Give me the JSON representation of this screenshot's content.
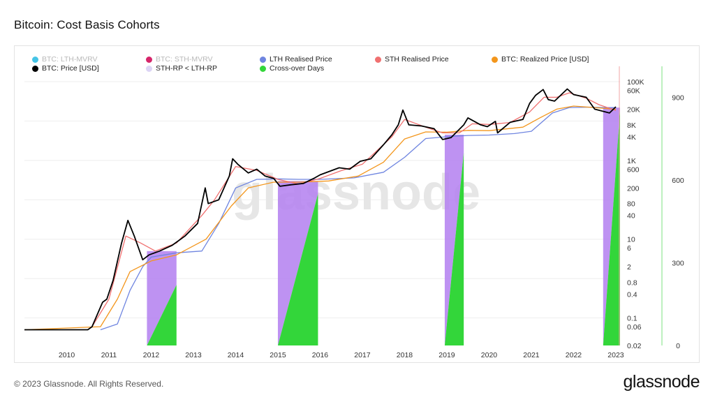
{
  "title": "Bitcoin: Cost Basis Cohorts",
  "footer": "© 2023 Glassnode. All Rights Reserved.",
  "brand": "glassnode",
  "watermark": "glassnode",
  "colors": {
    "lth_mvrv": "#45c4e6",
    "sth_mvrv": "#d6256a",
    "lth_rp": "#6f85e0",
    "sth_rp": "#f07070",
    "realized_price": "#f3961c",
    "price": "#000000",
    "sth_lt_lth_fill": "#b37ff0",
    "crossover_days": "#33d63a"
  },
  "legend": [
    {
      "label": "BTC: LTH-MVRV",
      "color": "#45c4e6",
      "faded": true
    },
    {
      "label": "BTC: STH-MVRV",
      "color": "#d6256a",
      "faded": true
    },
    {
      "label": "LTH Realised Price",
      "color": "#6f85e0",
      "faded": false
    },
    {
      "label": "STH Realised Price",
      "color": "#f07070",
      "faded": false
    },
    {
      "label": "BTC: Realized Price [USD]",
      "color": "#f3961c",
      "faded": false
    },
    {
      "label": "BTC: Price [USD]",
      "color": "#000000",
      "faded": false
    },
    {
      "label": "STH-RP < LTH-RP",
      "color": "#dcd4f5",
      "faded": false
    },
    {
      "label": "Cross-over Days",
      "color": "#33d63a",
      "faded": false
    }
  ],
  "chart_data": {
    "type": "line",
    "title": "Bitcoin: Cost Basis Cohorts",
    "x_ticks": [
      "2010",
      "2011",
      "2012",
      "2013",
      "2014",
      "2015",
      "2016",
      "2017",
      "2018",
      "2019",
      "2020",
      "2021",
      "2022",
      "2023"
    ],
    "x_range": [
      "2009-01-03",
      "2023-02-01"
    ],
    "y_left": {
      "scale": "log",
      "range": [
        0.02,
        200000
      ],
      "ticks": [
        "100K",
        "60K",
        "20K",
        "8K",
        "4K",
        "1K",
        "600",
        "200",
        "80",
        "40",
        "10",
        "6",
        "2",
        "0.8",
        "0.4",
        "0.1",
        "0.06",
        "0.02"
      ],
      "tick_values": [
        100000,
        60000,
        20000,
        8000,
        4000,
        1000,
        600,
        200,
        80,
        40,
        10,
        6,
        2,
        0.8,
        0.4,
        0.1,
        0.06,
        0.02
      ]
    },
    "y_right": {
      "scale": "linear",
      "range": [
        0,
        1000
      ],
      "ticks": [
        "900",
        "600",
        "300",
        "0"
      ],
      "tick_values": [
        900,
        600,
        300,
        0
      ]
    },
    "grid": true,
    "series": [
      {
        "name": "BTC: Price [USD]",
        "axis": "left",
        "points": [
          [
            "2009.0",
            0.05
          ],
          [
            "2010.5",
            0.05
          ],
          [
            "2010.6",
            0.06
          ],
          [
            "2010.85",
            0.25
          ],
          [
            "2010.95",
            0.3
          ],
          [
            "2011.1",
            0.9
          ],
          [
            "2011.3",
            8
          ],
          [
            "2011.45",
            30
          ],
          [
            "2011.6",
            12
          ],
          [
            "2011.8",
            3
          ],
          [
            "2011.95",
            4
          ],
          [
            "2012.2",
            5
          ],
          [
            "2012.5",
            7
          ],
          [
            "2012.8",
            12
          ],
          [
            "2013.1",
            25
          ],
          [
            "2013.28",
            200
          ],
          [
            "2013.35",
            80
          ],
          [
            "2013.6",
            100
          ],
          [
            "2013.85",
            400
          ],
          [
            "2013.93",
            1100
          ],
          [
            "2014.05",
            800
          ],
          [
            "2014.3",
            480
          ],
          [
            "2014.5",
            600
          ],
          [
            "2014.7",
            400
          ],
          [
            "2014.9",
            350
          ],
          [
            "2015.05",
            220
          ],
          [
            "2015.3",
            240
          ],
          [
            "2015.6",
            260
          ],
          [
            "2015.85",
            350
          ],
          [
            "2016.0",
            430
          ],
          [
            "2016.45",
            650
          ],
          [
            "2016.7",
            600
          ],
          [
            "2016.95",
            950
          ],
          [
            "2017.2",
            1100
          ],
          [
            "2017.5",
            2500
          ],
          [
            "2017.7",
            4500
          ],
          [
            "2017.85",
            8000
          ],
          [
            "2017.96",
            19000
          ],
          [
            "2018.1",
            8000
          ],
          [
            "2018.4",
            7500
          ],
          [
            "2018.7",
            6400
          ],
          [
            "2018.9",
            3400
          ],
          [
            "2019.1",
            3800
          ],
          [
            "2019.4",
            8000
          ],
          [
            "2019.5",
            12000
          ],
          [
            "2019.8",
            8000
          ],
          [
            "2019.96",
            7200
          ],
          [
            "2020.15",
            9800
          ],
          [
            "2020.2",
            5000
          ],
          [
            "2020.5",
            9300
          ],
          [
            "2020.8",
            11000
          ],
          [
            "2020.96",
            28000
          ],
          [
            "2021.1",
            45000
          ],
          [
            "2021.28",
            63000
          ],
          [
            "2021.4",
            35000
          ],
          [
            "2021.55",
            32000
          ],
          [
            "2021.85",
            65000
          ],
          [
            "2022.0",
            47000
          ],
          [
            "2022.3",
            40000
          ],
          [
            "2022.5",
            20000
          ],
          [
            "2022.85",
            16000
          ],
          [
            "2023.0",
            23000
          ]
        ]
      },
      {
        "name": "STH Realised Price",
        "axis": "left",
        "points": [
          [
            "2010.6",
            0.06
          ],
          [
            "2011.0",
            0.3
          ],
          [
            "2011.4",
            12
          ],
          [
            "2011.75",
            8
          ],
          [
            "2012.1",
            5
          ],
          [
            "2012.6",
            8
          ],
          [
            "2013.2",
            40
          ],
          [
            "2013.5",
            100
          ],
          [
            "2014.0",
            700
          ],
          [
            "2014.5",
            560
          ],
          [
            "2015.0",
            330
          ],
          [
            "2015.5",
            250
          ],
          [
            "2016.0",
            350
          ],
          [
            "2016.5",
            550
          ],
          [
            "2017.0",
            800
          ],
          [
            "2017.7",
            4000
          ],
          [
            "2018.0",
            11000
          ],
          [
            "2018.5",
            7000
          ],
          [
            "2018.9",
            5000
          ],
          [
            "2019.3",
            5000
          ],
          [
            "2019.6",
            8500
          ],
          [
            "2020.0",
            8200
          ],
          [
            "2020.5",
            9200
          ],
          [
            "2020.96",
            17000
          ],
          [
            "2021.3",
            40000
          ],
          [
            "2021.6",
            40000
          ],
          [
            "2021.9",
            52000
          ],
          [
            "2022.3",
            38000
          ],
          [
            "2022.6",
            26000
          ],
          [
            "2023.0",
            18500
          ]
        ]
      },
      {
        "name": "LTH Realised Price",
        "axis": "left",
        "points": [
          [
            "2010.8",
            0.05
          ],
          [
            "2011.2",
            0.07
          ],
          [
            "2011.5",
            0.5
          ],
          [
            "2011.8",
            2
          ],
          [
            "2012.0",
            3.5
          ],
          [
            "2012.6",
            4.5
          ],
          [
            "2013.2",
            5
          ],
          [
            "2013.6",
            25
          ],
          [
            "2014.0",
            200
          ],
          [
            "2014.5",
            330
          ],
          [
            "2015.0",
            340
          ],
          [
            "2015.5",
            330
          ],
          [
            "2016.0",
            330
          ],
          [
            "2016.8",
            360
          ],
          [
            "2017.5",
            500
          ],
          [
            "2018.0",
            1200
          ],
          [
            "2018.5",
            3600
          ],
          [
            "2019.0",
            4000
          ],
          [
            "2019.5",
            4300
          ],
          [
            "2020.0",
            4400
          ],
          [
            "2020.6",
            4800
          ],
          [
            "2021.0",
            5500
          ],
          [
            "2021.5",
            16000
          ],
          [
            "2021.9",
            22000
          ],
          [
            "2022.4",
            22500
          ],
          [
            "2022.7",
            22000
          ],
          [
            "2023.0",
            22000
          ]
        ]
      },
      {
        "name": "BTC: Realized Price [USD]",
        "axis": "left",
        "points": [
          [
            "2009.0",
            0.05
          ],
          [
            "2010.8",
            0.06
          ],
          [
            "2011.2",
            0.3
          ],
          [
            "2011.5",
            1.5
          ],
          [
            "2012.0",
            2.8
          ],
          [
            "2012.6",
            4
          ],
          [
            "2013.3",
            10
          ],
          [
            "2013.9",
            70
          ],
          [
            "2014.3",
            200
          ],
          [
            "2014.9",
            280
          ],
          [
            "2015.5",
            280
          ],
          [
            "2016.2",
            300
          ],
          [
            "2016.9",
            400
          ],
          [
            "2017.5",
            900
          ],
          [
            "2018.0",
            3500
          ],
          [
            "2018.5",
            5300
          ],
          [
            "2019.0",
            5200
          ],
          [
            "2019.5",
            5800
          ],
          [
            "2020.0",
            5700
          ],
          [
            "2020.8",
            7000
          ],
          [
            "2021.2",
            12000
          ],
          [
            "2021.6",
            20000
          ],
          [
            "2022.0",
            24000
          ],
          [
            "2022.5",
            22000
          ],
          [
            "2023.0",
            19800
          ]
        ]
      }
    ],
    "regions": [
      {
        "name": "STH-RP < LTH-RP",
        "start": "2011.9",
        "end": "2012.6"
      },
      {
        "name": "STH-RP < LTH-RP",
        "start": "2015.0",
        "end": "2015.95"
      },
      {
        "name": "STH-RP < LTH-RP",
        "start": "2018.95",
        "end": "2019.4"
      },
      {
        "name": "STH-RP < LTH-RP",
        "start": "2022.7",
        "end": "2023.1"
      }
    ],
    "crossover_days": [
      {
        "start": "2011.9",
        "end": "2012.6",
        "max": 220
      },
      {
        "start": "2015.0",
        "end": "2015.95",
        "max": 550
      },
      {
        "start": "2018.95",
        "end": "2019.4",
        "max": 700
      },
      {
        "start": "2022.7",
        "end": "2023.1",
        "max": 850
      }
    ]
  }
}
